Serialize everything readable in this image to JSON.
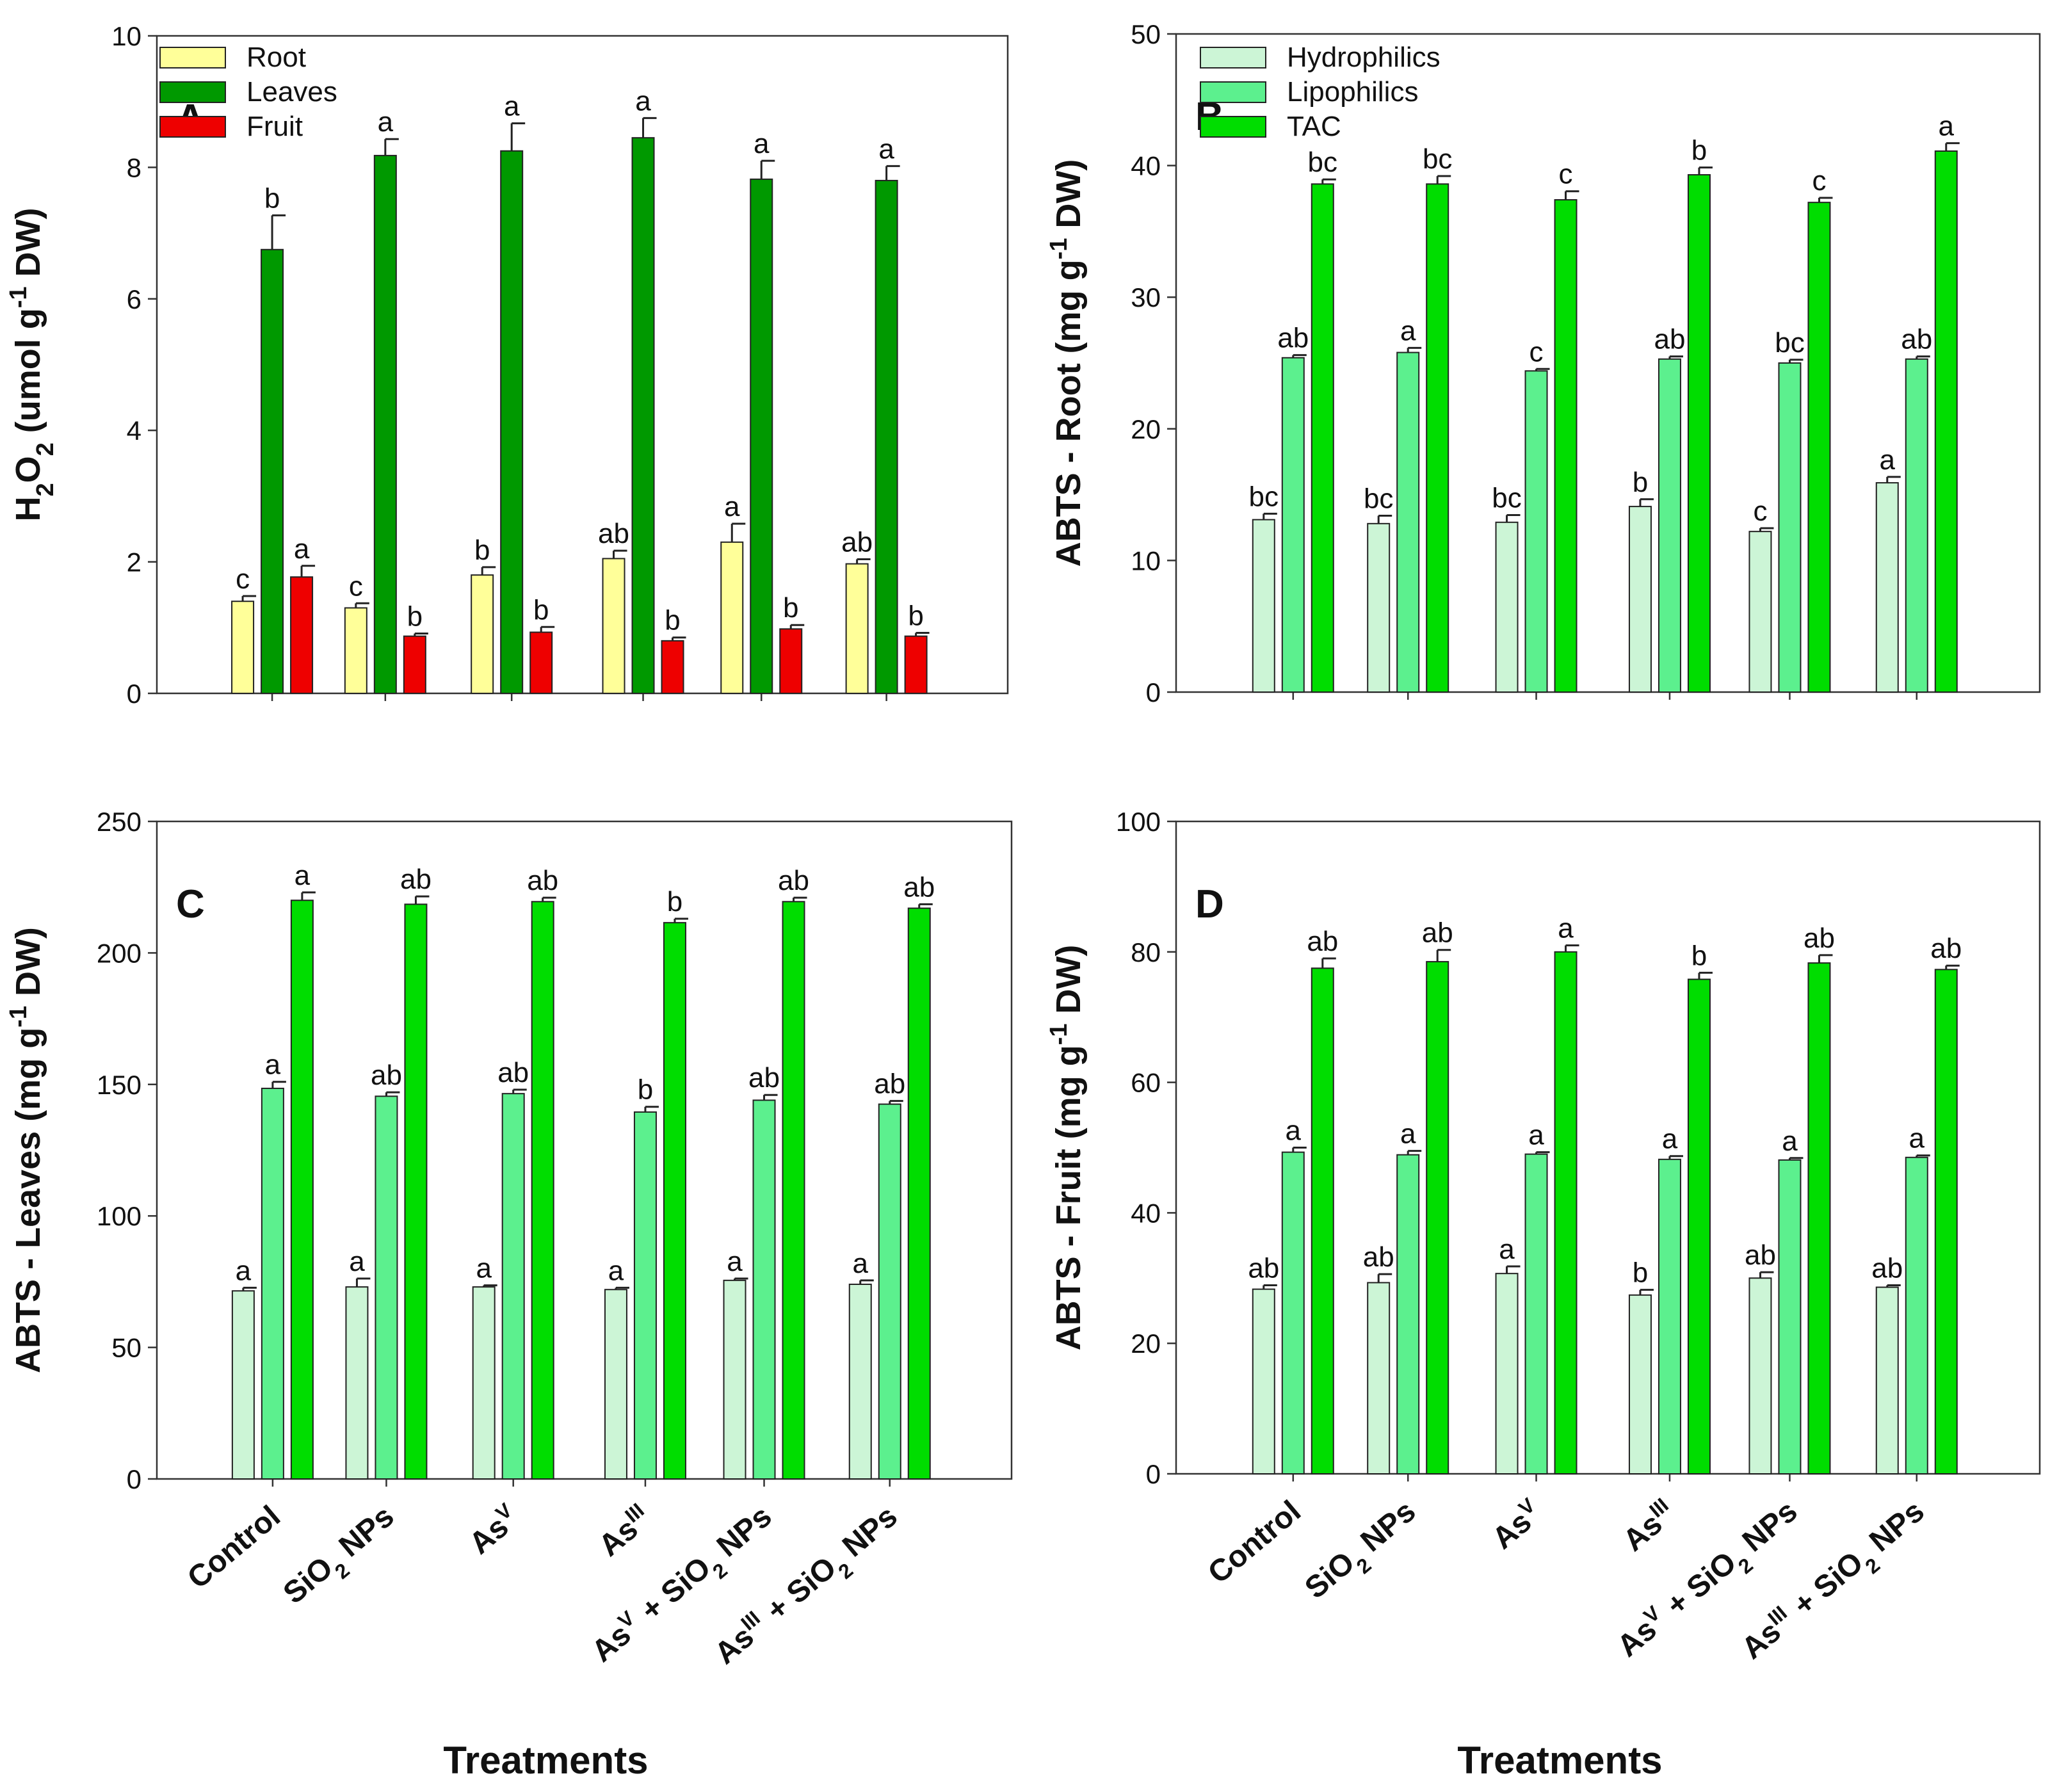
{
  "x_axis_title": "Treatments",
  "categories": [
    {
      "base": "Control",
      "sup1": "",
      "mid": "",
      "sub": "",
      "tail": ""
    },
    {
      "base": "SiO",
      "sup1": "",
      "mid": "",
      "sub": "2",
      "tail": " NPs"
    },
    {
      "base": "As",
      "sup1": "V",
      "mid": "",
      "sub": "",
      "tail": ""
    },
    {
      "base": "As",
      "sup1": "III",
      "mid": "",
      "sub": "",
      "tail": ""
    },
    {
      "base": "As",
      "sup1": "V",
      "mid": " + SiO",
      "sub": "2",
      "tail": " NPs"
    },
    {
      "base": "As",
      "sup1": "III",
      "mid": " + SiO",
      "sub": "2",
      "tail": " NPs"
    }
  ],
  "chart_data": [
    {
      "type": "bar",
      "panel": "A",
      "ylabel": {
        "pre": "H",
        "sub1": "2",
        "mid": "O",
        "sub2": "2",
        "post": " (umol g",
        "sup": "-1",
        "end": " DW)"
      },
      "ylim": [
        0,
        10
      ],
      "yticks": [
        0,
        2,
        4,
        6,
        8,
        10
      ],
      "grid": false,
      "legend_position": "top-left",
      "categories": [
        "Control",
        "SiO2 NPs",
        "As V",
        "As III",
        "As V + SiO2 NPs",
        "As III + SiO2 NPs"
      ],
      "series": [
        {
          "name": "Root",
          "color": "#ffff99",
          "values": [
            1.4,
            1.3,
            1.8,
            2.05,
            2.3,
            1.97
          ],
          "errors": [
            0.08,
            0.07,
            0.12,
            0.12,
            0.28,
            0.07
          ],
          "letters": [
            "c",
            "c",
            "b",
            "ab",
            "a",
            "ab"
          ]
        },
        {
          "name": "Leaves",
          "color": "#009900",
          "values": [
            6.75,
            8.18,
            8.25,
            8.45,
            7.82,
            7.8
          ],
          "errors": [
            0.52,
            0.25,
            0.42,
            0.3,
            0.28,
            0.22
          ],
          "letters": [
            "b",
            "a",
            "a",
            "a",
            "a",
            "a"
          ]
        },
        {
          "name": "Fruit",
          "color": "#ee0000",
          "values": [
            1.77,
            0.87,
            0.93,
            0.8,
            0.98,
            0.87
          ],
          "errors": [
            0.17,
            0.04,
            0.08,
            0.05,
            0.06,
            0.05
          ],
          "letters": [
            "a",
            "b",
            "b",
            "b",
            "b",
            "b"
          ]
        }
      ]
    },
    {
      "type": "bar",
      "panel": "B",
      "ylabel": {
        "pre": "ABTS - Root (mg g",
        "sup": "-1",
        "end": " DW)"
      },
      "ylim": [
        0,
        50
      ],
      "yticks": [
        0,
        10,
        20,
        30,
        40,
        50
      ],
      "grid": false,
      "legend_position": "top-left",
      "categories": [
        "Control",
        "SiO2 NPs",
        "As V",
        "As III",
        "As V + SiO2 NPs",
        "As III + SiO2 NPs"
      ],
      "series": [
        {
          "name": "Hydrophilics",
          "color": "#ccf5d6",
          "values": [
            13.1,
            12.8,
            12.9,
            14.1,
            12.2,
            15.9
          ],
          "errors": [
            0.45,
            0.6,
            0.55,
            0.55,
            0.25,
            0.45
          ],
          "letters": [
            "bc",
            "bc",
            "bc",
            "b",
            "c",
            "a"
          ]
        },
        {
          "name": "Lipophilics",
          "color": "#5cf08e",
          "values": [
            25.4,
            25.8,
            24.4,
            25.3,
            25.0,
            25.3
          ],
          "errors": [
            0.2,
            0.35,
            0.15,
            0.2,
            0.25,
            0.2
          ],
          "letters": [
            "ab",
            "a",
            "c",
            "ab",
            "bc",
            "ab"
          ]
        },
        {
          "name": "TAC",
          "color": "#00dd00",
          "values": [
            38.6,
            38.6,
            37.4,
            39.3,
            37.2,
            41.1
          ],
          "errors": [
            0.35,
            0.6,
            0.65,
            0.55,
            0.35,
            0.6
          ],
          "letters": [
            "bc",
            "bc",
            "c",
            "b",
            "c",
            "a"
          ]
        }
      ]
    },
    {
      "type": "bar",
      "panel": "C",
      "ylabel": {
        "pre": "ABTS - Leaves (mg g",
        "sup": "-1",
        "end": " DW)"
      },
      "ylim": [
        0,
        250
      ],
      "yticks": [
        0,
        50,
        100,
        150,
        200,
        250
      ],
      "grid": false,
      "categories": [
        "Control",
        "SiO2 NPs",
        "As V",
        "As III",
        "As V + SiO2 NPs",
        "As III + SiO2 NPs"
      ],
      "series": [
        {
          "name": "Hydrophilics",
          "color": "#ccf5d6",
          "values": [
            71.5,
            73,
            73,
            72,
            75.5,
            74
          ],
          "errors": [
            1.2,
            3.2,
            0.6,
            0.7,
            0.7,
            1.5
          ],
          "letters": [
            "a",
            "a",
            "a",
            "a",
            "a",
            "a"
          ]
        },
        {
          "name": "Lipophilics",
          "color": "#5cf08e",
          "values": [
            148.5,
            145.5,
            146.5,
            139.5,
            144,
            142.5
          ],
          "errors": [
            2.5,
            1.5,
            1.5,
            2.0,
            2.0,
            1.2
          ],
          "letters": [
            "a",
            "ab",
            "ab",
            "b",
            "ab",
            "ab"
          ]
        },
        {
          "name": "TAC",
          "color": "#00dd00",
          "values": [
            220,
            218.5,
            219.5,
            211.5,
            219.5,
            217
          ],
          "errors": [
            3.0,
            3.0,
            1.5,
            1.5,
            1.5,
            1.5
          ],
          "letters": [
            "a",
            "ab",
            "ab",
            "b",
            "ab",
            "ab"
          ]
        }
      ]
    },
    {
      "type": "bar",
      "panel": "D",
      "ylabel": {
        "pre": "ABTS - Fruit (mg g",
        "sup": "-1",
        "end": " DW)"
      },
      "ylim": [
        0,
        100
      ],
      "yticks": [
        0,
        20,
        40,
        60,
        80,
        100
      ],
      "grid": false,
      "categories": [
        "Control",
        "SiO2 NPs",
        "As V",
        "As III",
        "As V + SiO2 NPs",
        "As III + SiO2 NPs"
      ],
      "series": [
        {
          "name": "Hydrophilics",
          "color": "#ccf5d6",
          "values": [
            28.3,
            29.3,
            30.7,
            27.4,
            30.0,
            28.6
          ],
          "errors": [
            0.6,
            1.3,
            1.1,
            0.8,
            0.9,
            0.3
          ],
          "letters": [
            "ab",
            "ab",
            "a",
            "b",
            "ab",
            "ab"
          ]
        },
        {
          "name": "Lipophilics",
          "color": "#5cf08e",
          "values": [
            49.3,
            48.9,
            49.0,
            48.2,
            48.1,
            48.5
          ],
          "errors": [
            0.7,
            0.6,
            0.3,
            0.5,
            0.3,
            0.3
          ],
          "letters": [
            "a",
            "a",
            "a",
            "a",
            "a",
            "a"
          ]
        },
        {
          "name": "TAC",
          "color": "#00dd00",
          "values": [
            77.5,
            78.5,
            80.0,
            75.8,
            78.3,
            77.3
          ],
          "errors": [
            1.5,
            1.8,
            1.0,
            1.0,
            1.2,
            0.6
          ],
          "letters": [
            "ab",
            "ab",
            "a",
            "b",
            "ab",
            "ab"
          ]
        }
      ]
    }
  ]
}
